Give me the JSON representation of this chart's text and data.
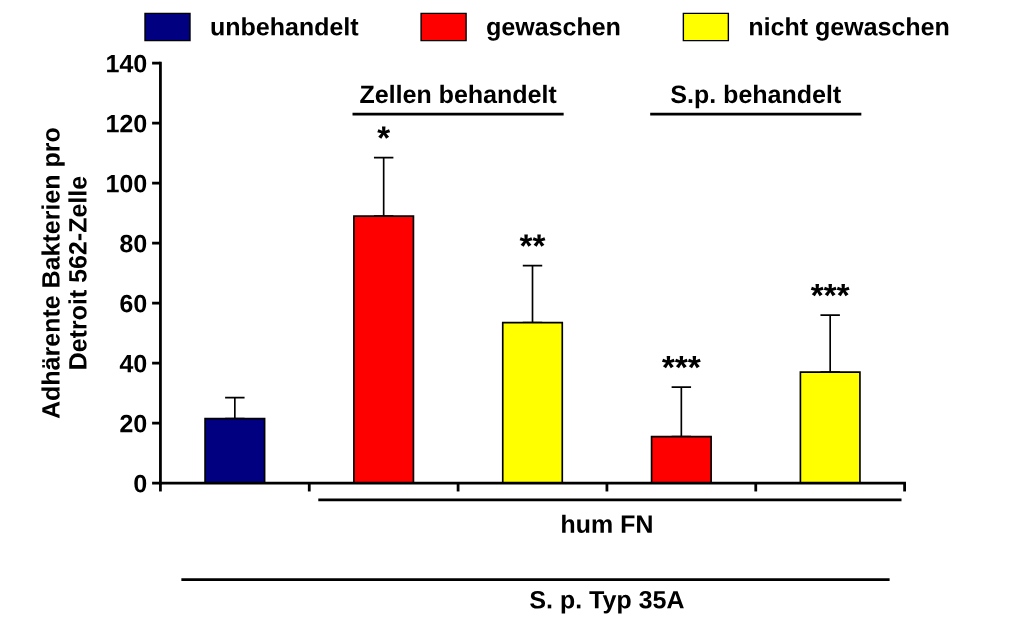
{
  "chart_data": {
    "type": "bar",
    "ylabel": "Adhärente Bakterien pro\nDetroit 562-Zelle",
    "categories": [
      null,
      null,
      null,
      null,
      null
    ],
    "series": [
      {
        "name": "unbehandelt",
        "color": "#000080",
        "values": [
          21.5,
          null,
          null,
          null,
          null
        ],
        "errors": [
          [
            21.5,
            28.5
          ],
          null,
          null,
          null,
          null
        ]
      },
      {
        "name": "gewaschen",
        "color": "#ff0000",
        "values": [
          null,
          89,
          null,
          15.5,
          null
        ],
        "errors": [
          null,
          [
            89,
            108.5
          ],
          null,
          [
            15.5,
            32
          ],
          null
        ],
        "value_labels": [
          null,
          "*",
          null,
          "***",
          null
        ]
      },
      {
        "name": "nicht gewaschen",
        "color": "#ffff00",
        "values": [
          null,
          null,
          53.5,
          null,
          37
        ],
        "errors": [
          null,
          null,
          [
            53.5,
            72.5
          ],
          null,
          [
            37,
            56
          ]
        ],
        "value_labels": [
          null,
          null,
          "**",
          null,
          "***"
        ]
      }
    ],
    "ylim": [
      0,
      140
    ],
    "yticks": [
      0,
      20,
      40,
      60,
      80,
      100,
      120,
      140
    ],
    "grid": false,
    "legend": "top",
    "annotations": [
      "Zellen behandelt",
      "S.p. behandelt",
      "hum FN",
      "S. p. Typ 35A"
    ]
  }
}
